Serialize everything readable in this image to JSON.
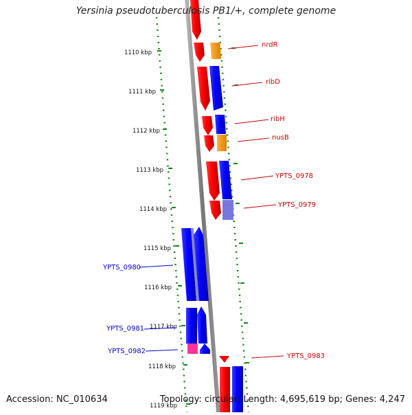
{
  "title": "Yersinia pseudotuberculosis PB1/+, complete genome",
  "footer": {
    "accession": "Accession: NC_010634",
    "topology": "Topology: circular; Length: 4,695,619 bp; Genes: 4,247"
  },
  "ticks": [
    {
      "label": "1110 kbp"
    },
    {
      "label": "1111 kbp"
    },
    {
      "label": "1112 kbp"
    },
    {
      "label": "1113 kbp"
    },
    {
      "label": "1114 kbp"
    },
    {
      "label": "1115 kbp"
    },
    {
      "label": "1116 kbp"
    },
    {
      "label": "1117 kbp"
    },
    {
      "label": "1118 kbp"
    },
    {
      "label": "1119 kbp"
    }
  ],
  "gene_labels": [
    {
      "name": "nrdR",
      "color": "#cc0000"
    },
    {
      "name": "ribD",
      "color": "#cc0000"
    },
    {
      "name": "ribH",
      "color": "#cc0000"
    },
    {
      "name": "nusB",
      "color": "#cc0000"
    },
    {
      "name": "YPTS_0978",
      "color": "#cc0000"
    },
    {
      "name": "YPTS_0979",
      "color": "#cc0000"
    },
    {
      "name": "YPTS_0980",
      "color": "#0000cc"
    },
    {
      "name": "YPTS_0981",
      "color": "#0000cc"
    },
    {
      "name": "YPTS_0982",
      "color": "#0000cc"
    },
    {
      "name": "YPTS_0983",
      "color": "#cc0000"
    }
  ],
  "colors": {
    "gene_red": "#ff0000",
    "cds_blue": "#0000ff",
    "orange": "#ff9900",
    "pink": "#ff3399",
    "lavender": "#7777dd",
    "backbone": "#888888",
    "gc_dots": "#118811"
  }
}
